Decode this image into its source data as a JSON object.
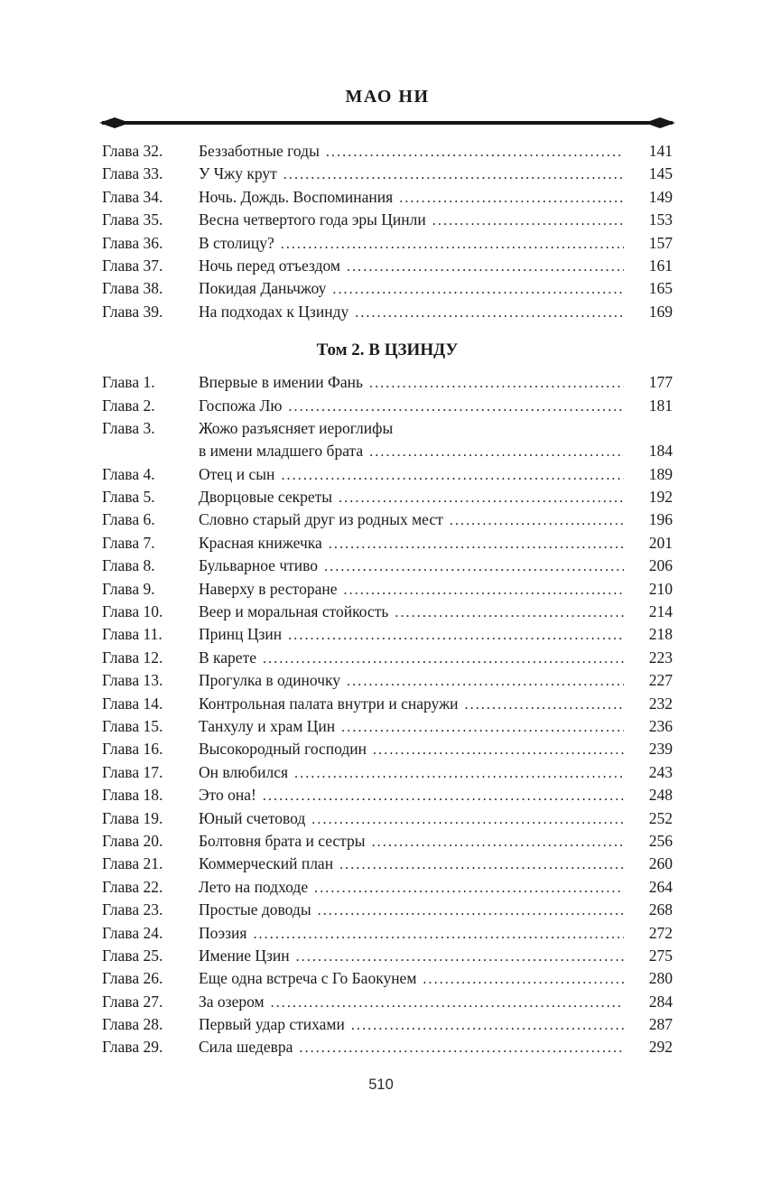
{
  "page": {
    "running_title": "МАО НИ",
    "folio": "510"
  },
  "toc": {
    "sections": [
      {
        "heading": "",
        "entries": [
          {
            "label": "Глава 32.",
            "lines": [
              "Беззаботные годы"
            ],
            "page": "141"
          },
          {
            "label": "Глава 33.",
            "lines": [
              "У Чжу крут"
            ],
            "page": "145"
          },
          {
            "label": "Глава 34.",
            "lines": [
              "Ночь. Дождь. Воспоминания"
            ],
            "page": "149"
          },
          {
            "label": "Глава 35.",
            "lines": [
              "Весна четвертого года эры Цинли"
            ],
            "page": "153"
          },
          {
            "label": "Глава 36.",
            "lines": [
              "В столицу?"
            ],
            "page": "157"
          },
          {
            "label": "Глава 37.",
            "lines": [
              "Ночь перед отъездом"
            ],
            "page": "161"
          },
          {
            "label": "Глава 38.",
            "lines": [
              "Покидая Даньчжоу"
            ],
            "page": "165"
          },
          {
            "label": "Глава 39.",
            "lines": [
              "На подходах к Цзинду"
            ],
            "page": "169"
          }
        ]
      },
      {
        "heading": "Том 2. В ЦЗИНДУ",
        "entries": [
          {
            "label": "Глава 1.",
            "lines": [
              "Впервые в имении Фань"
            ],
            "page": "177"
          },
          {
            "label": "Глава 2.",
            "lines": [
              "Госпожа Лю"
            ],
            "page": "181"
          },
          {
            "label": "Глава 3.",
            "lines": [
              "Жожо разъясняет иероглифы",
              "в имени младшего брата"
            ],
            "page": "184"
          },
          {
            "label": "Глава 4.",
            "lines": [
              "Отец и сын"
            ],
            "page": "189"
          },
          {
            "label": "Глава 5.",
            "lines": [
              "Дворцовые секреты"
            ],
            "page": "192"
          },
          {
            "label": "Глава 6.",
            "lines": [
              "Словно старый друг из родных мест"
            ],
            "page": "196"
          },
          {
            "label": "Глава 7.",
            "lines": [
              "Красная книжечка"
            ],
            "page": "201"
          },
          {
            "label": "Глава 8.",
            "lines": [
              "Бульварное чтиво"
            ],
            "page": "206"
          },
          {
            "label": "Глава 9.",
            "lines": [
              "Наверху в ресторане"
            ],
            "page": "210"
          },
          {
            "label": "Глава 10.",
            "lines": [
              "Веер и моральная стойкость"
            ],
            "page": "214"
          },
          {
            "label": "Глава 11.",
            "lines": [
              "Принц Цзин"
            ],
            "page": "218"
          },
          {
            "label": "Глава 12.",
            "lines": [
              "В карете"
            ],
            "page": "223"
          },
          {
            "label": "Глава 13.",
            "lines": [
              "Прогулка в одиночку"
            ],
            "page": "227"
          },
          {
            "label": "Глава 14.",
            "lines": [
              "Контрольная палата внутри и снаружи"
            ],
            "page": "232"
          },
          {
            "label": "Глава 15.",
            "lines": [
              "Танхулу и храм Цин"
            ],
            "page": "236"
          },
          {
            "label": "Глава 16.",
            "lines": [
              "Высокородный господин"
            ],
            "page": "239"
          },
          {
            "label": "Глава 17.",
            "lines": [
              "Он влюбился"
            ],
            "page": "243"
          },
          {
            "label": "Глава 18.",
            "lines": [
              "Это она!"
            ],
            "page": "248"
          },
          {
            "label": "Глава 19.",
            "lines": [
              "Юный счетовод"
            ],
            "page": "252"
          },
          {
            "label": "Глава 20.",
            "lines": [
              "Болтовня брата и сестры"
            ],
            "page": "256"
          },
          {
            "label": "Глава 21.",
            "lines": [
              "Коммерческий план"
            ],
            "page": "260"
          },
          {
            "label": "Глава 22.",
            "lines": [
              "Лето на подходе"
            ],
            "page": "264"
          },
          {
            "label": "Глава 23.",
            "lines": [
              "Простые доводы"
            ],
            "page": "268"
          },
          {
            "label": "Глава 24.",
            "lines": [
              "Поэзия"
            ],
            "page": "272"
          },
          {
            "label": "Глава 25.",
            "lines": [
              "Имение Цзин"
            ],
            "page": "275"
          },
          {
            "label": "Глава 26.",
            "lines": [
              "Еще одна встреча с Го Баокунем"
            ],
            "page": "280"
          },
          {
            "label": "Глава 27.",
            "lines": [
              "За озером"
            ],
            "page": "284"
          },
          {
            "label": "Глава 28.",
            "lines": [
              "Первый удар стихами"
            ],
            "page": "287"
          },
          {
            "label": "Глава 29.",
            "lines": [
              "Сила шедевра"
            ],
            "page": "292"
          }
        ]
      }
    ]
  }
}
